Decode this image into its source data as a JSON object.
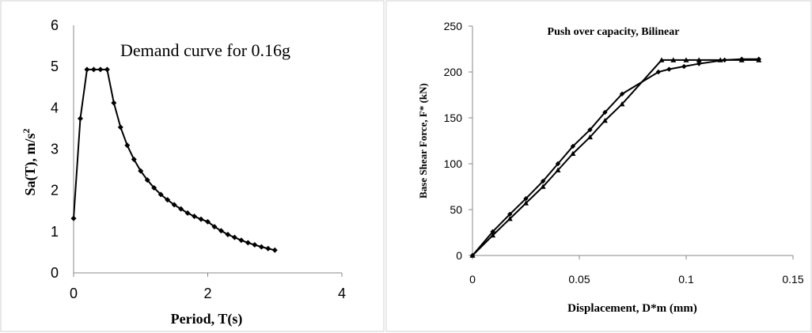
{
  "chart_data": [
    {
      "type": "line",
      "title": "Demand curve for 0.16g",
      "xlabel": "Period, T(s)",
      "ylabel_main": "Sa(T), m/s",
      "ylabel_sup": "2",
      "xlim": [
        0,
        4
      ],
      "ylim": [
        0,
        6
      ],
      "xticks": [
        0,
        2,
        4
      ],
      "yticks": [
        0,
        1,
        2,
        3,
        4,
        5,
        6
      ],
      "grid": false,
      "legend": "none",
      "marker": "diamond",
      "series": [
        {
          "x": [
            0,
            0.1,
            0.2,
            0.3,
            0.4,
            0.5,
            0.6,
            0.7,
            0.8,
            0.9,
            1.0,
            1.1,
            1.2,
            1.3,
            1.4,
            1.5,
            1.6,
            1.7,
            1.8,
            1.9,
            2.0,
            2.1,
            2.2,
            2.3,
            2.4,
            2.5,
            2.6,
            2.7,
            2.8,
            2.9,
            3.0
          ],
          "y": [
            1.32,
            3.74,
            4.93,
            4.93,
            4.93,
            4.93,
            4.12,
            3.53,
            3.09,
            2.75,
            2.47,
            2.25,
            2.06,
            1.9,
            1.77,
            1.65,
            1.55,
            1.45,
            1.37,
            1.3,
            1.24,
            1.12,
            1.02,
            0.93,
            0.86,
            0.79,
            0.73,
            0.68,
            0.63,
            0.59,
            0.55
          ]
        }
      ]
    },
    {
      "type": "line",
      "title": "Push over capacity, Bilinear",
      "xlabel": "Displacement, D*m (mm)",
      "ylabel": "Base Shear Force, F* (kN)",
      "xlim": [
        0,
        0.15
      ],
      "ylim": [
        0,
        250
      ],
      "xticks": [
        0,
        0.05,
        0.1,
        0.15
      ],
      "xtick_labels": [
        "0",
        "0.05",
        "0.1",
        "0.15"
      ],
      "yticks": [
        0,
        50,
        100,
        150,
        200,
        250
      ],
      "grid": false,
      "legend": "none",
      "series": [
        {
          "marker": "diamond",
          "x": [
            0,
            0.0095,
            0.0175,
            0.025,
            0.033,
            0.04,
            0.047,
            0.055,
            0.062,
            0.07,
            0.087,
            0.092,
            0.099,
            0.106,
            0.118,
            0.126,
            0.134
          ],
          "y": [
            0,
            26,
            45,
            62,
            81,
            100,
            119,
            137,
            156,
            176,
            200,
            203,
            206,
            209,
            213,
            214,
            214
          ]
        },
        {
          "marker": "triangle",
          "x": [
            0,
            0.0095,
            0.0175,
            0.025,
            0.033,
            0.04,
            0.047,
            0.055,
            0.062,
            0.07,
            0.0885,
            0.094,
            0.1,
            0.106,
            0.116,
            0.126,
            0.134
          ],
          "y": [
            0,
            22,
            40,
            57,
            75,
            93,
            111,
            129,
            147,
            165,
            213,
            213,
            213,
            213,
            213,
            213,
            213
          ]
        }
      ]
    }
  ]
}
